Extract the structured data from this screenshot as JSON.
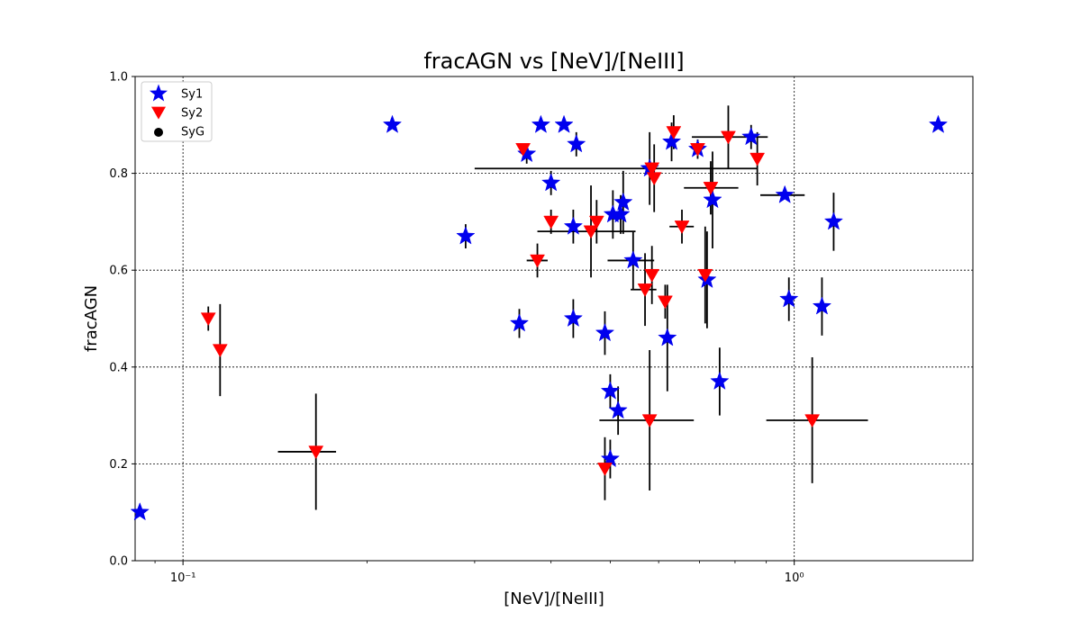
{
  "chart_data": {
    "type": "scatter",
    "title": "fracAGN vs [NeV]/[NeIII]",
    "xlabel": "[NeV]/[NeIII]",
    "ylabel": "fracAGN",
    "xscale": "log",
    "xlim": [
      0.0835,
      1.96
    ],
    "ylim": [
      0.0,
      1.0
    ],
    "xticks_major": [
      {
        "value": 0.1,
        "label": "10⁻¹"
      },
      {
        "value": 1.0,
        "label": "10⁰"
      }
    ],
    "yticks": [
      {
        "value": 0.0,
        "label": "0.0"
      },
      {
        "value": 0.2,
        "label": "0.2"
      },
      {
        "value": 0.4,
        "label": "0.4"
      },
      {
        "value": 0.6,
        "label": "0.6"
      },
      {
        "value": 0.8,
        "label": "0.8"
      },
      {
        "value": 1.0,
        "label": "1.0"
      }
    ],
    "grid": "major, dotted",
    "legend_position": "top-left",
    "legend": [
      {
        "name": "Sy1",
        "marker": "star",
        "color": "#0000ee"
      },
      {
        "name": "Sy2",
        "marker": "triangle-down",
        "color": "#ff0000"
      },
      {
        "name": "SyG",
        "marker": "circle",
        "color": "#000000"
      }
    ],
    "series": [
      {
        "name": "Sy1",
        "marker": "star",
        "color": "#0000ee",
        "points": [
          {
            "x": 0.085,
            "y": 0.1
          },
          {
            "x": 0.22,
            "y": 0.9
          },
          {
            "x": 0.29,
            "y": 0.67,
            "yerr": 0.025
          },
          {
            "x": 0.355,
            "y": 0.49,
            "yerr": 0.03
          },
          {
            "x": 0.365,
            "y": 0.84,
            "yerr": 0.02
          },
          {
            "x": 0.385,
            "y": 0.9
          },
          {
            "x": 0.4,
            "y": 0.78,
            "yerr": 0.025
          },
          {
            "x": 0.42,
            "y": 0.9
          },
          {
            "x": 0.435,
            "y": 0.5,
            "yerr": 0.04
          },
          {
            "x": 0.435,
            "y": 0.69,
            "yerr": 0.035
          },
          {
            "x": 0.44,
            "y": 0.86,
            "yerr": 0.025
          },
          {
            "x": 0.49,
            "y": 0.47,
            "yerr": 0.045
          },
          {
            "x": 0.5,
            "y": 0.35,
            "yerr": 0.035
          },
          {
            "x": 0.5,
            "y": 0.21,
            "yerr": 0.04
          },
          {
            "x": 0.505,
            "y": 0.715,
            "yerr": 0.05
          },
          {
            "x": 0.515,
            "y": 0.31,
            "yerr": 0.05
          },
          {
            "x": 0.52,
            "y": 0.715,
            "yerr": 0.04
          },
          {
            "x": 0.525,
            "y": 0.74,
            "yerr": 0.065
          },
          {
            "x": 0.545,
            "y": 0.62,
            "xerr": [
              0.05,
              0.045
            ],
            "yerr": 0.06
          },
          {
            "x": 0.58,
            "y": 0.81,
            "yerr": 0.075
          },
          {
            "x": 0.62,
            "y": 0.46,
            "yerr": 0.11
          },
          {
            "x": 0.63,
            "y": 0.865,
            "yerr": 0.04
          },
          {
            "x": 0.695,
            "y": 0.85,
            "yerr": 0.02
          },
          {
            "x": 0.72,
            "y": 0.58,
            "yerr": 0.1
          },
          {
            "x": 0.735,
            "y": 0.745,
            "yerr": 0.1
          },
          {
            "x": 0.755,
            "y": 0.37,
            "yerr": 0.07
          },
          {
            "x": 0.85,
            "y": 0.875,
            "yerr": 0.025
          },
          {
            "x": 0.965,
            "y": 0.755,
            "xerr": [
              0.085,
              0.075
            ]
          },
          {
            "x": 0.98,
            "y": 0.54,
            "yerr": 0.045
          },
          {
            "x": 1.11,
            "y": 0.525,
            "yerr": 0.06
          },
          {
            "x": 1.16,
            "y": 0.7,
            "yerr": 0.06
          },
          {
            "x": 1.72,
            "y": 0.9
          }
        ]
      },
      {
        "name": "Sy2",
        "marker": "triangle-down",
        "color": "#ff0000",
        "points": [
          {
            "x": 0.11,
            "y": 0.5,
            "yerr": 0.025
          },
          {
            "x": 0.115,
            "y": 0.435,
            "yerr": 0.095
          },
          {
            "x": 0.165,
            "y": 0.225,
            "xerr": [
              0.022,
              0.013
            ],
            "yerr": 0.12
          },
          {
            "x": 0.36,
            "y": 0.85
          },
          {
            "x": 0.38,
            "y": 0.62,
            "xerr": [
              0.015,
              0.015
            ],
            "yerr": 0.035
          },
          {
            "x": 0.4,
            "y": 0.7,
            "yerr": 0.025
          },
          {
            "x": 0.465,
            "y": 0.68,
            "xerr": [
              0.085,
              0.085
            ],
            "yerr": 0.095
          },
          {
            "x": 0.475,
            "y": 0.7,
            "yerr": 0.045
          },
          {
            "x": 0.49,
            "y": 0.19,
            "yerr": 0.065
          },
          {
            "x": 0.57,
            "y": 0.56,
            "xerr": [
              0.03,
              0.025
            ],
            "yerr": 0.075
          },
          {
            "x": 0.58,
            "y": 0.29,
            "xerr": [
              0.1,
              0.105
            ],
            "yerr": 0.145
          },
          {
            "x": 0.585,
            "y": 0.59,
            "yerr": 0.06
          },
          {
            "x": 0.59,
            "y": 0.79,
            "yerr": 0.07
          },
          {
            "x": 0.615,
            "y": 0.535,
            "yerr": 0.035
          },
          {
            "x": 0.635,
            "y": 0.885,
            "yerr": 0.035
          },
          {
            "x": 0.655,
            "y": 0.69,
            "xerr": [
              0.03,
              0.03
            ],
            "yerr": 0.035
          },
          {
            "x": 0.695,
            "y": 0.85
          },
          {
            "x": 0.715,
            "y": 0.59,
            "yerr": 0.1
          },
          {
            "x": 0.73,
            "y": 0.77,
            "xerr": [
              0.07,
              0.08
            ],
            "yerr": 0.055
          },
          {
            "x": 0.78,
            "y": 0.875,
            "xerr": [
              0.1,
              0.125
            ],
            "yerr": 0.065
          },
          {
            "x": 0.87,
            "y": 0.83,
            "yerr": 0.055
          },
          {
            "x": 1.07,
            "y": 0.29,
            "xerr": [
              0.17,
              0.25
            ],
            "yerr": 0.13
          },
          {
            "x": 0.585,
            "y": 0.81,
            "xerr": [
              0.285,
              0.285
            ]
          }
        ]
      },
      {
        "name": "SyG",
        "marker": "circle",
        "color": "#000000",
        "points": []
      }
    ]
  }
}
